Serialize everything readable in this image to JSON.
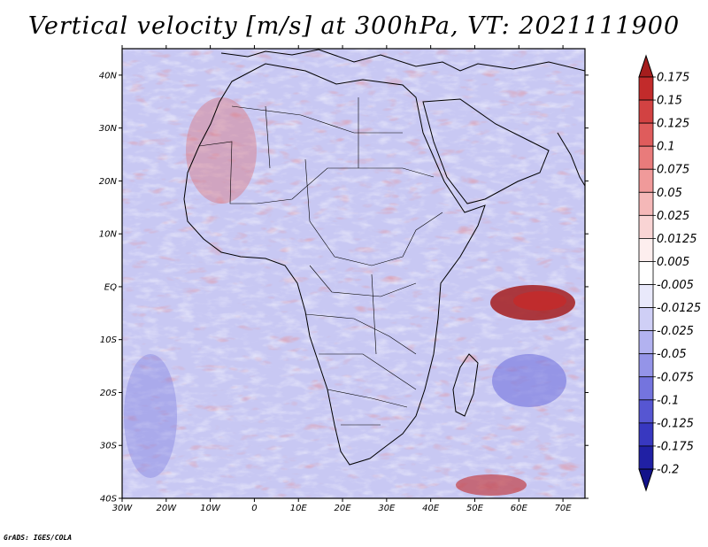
{
  "title": "Vertical velocity [m/s] at 300hPa, VT: 2021111900",
  "map": {
    "lat_labels": [
      "40N",
      "30N",
      "20N",
      "10N",
      "EQ",
      "10S",
      "20S",
      "30S",
      "40S"
    ],
    "lon_labels": [
      "30W",
      "20W",
      "10W",
      "0",
      "10E",
      "20E",
      "30E",
      "40E",
      "50E",
      "60E",
      "70E"
    ],
    "lat_range": [
      -40,
      45
    ],
    "lon_range": [
      -30,
      75
    ]
  },
  "colorbar": {
    "labels": [
      "0.175",
      "0.15",
      "0.125",
      "0.1",
      "0.075",
      "0.05",
      "0.025",
      "0.0125",
      "0.005",
      "-0.005",
      "-0.0125",
      "-0.025",
      "-0.05",
      "-0.075",
      "-0.1",
      "-0.125",
      "-0.175",
      "-0.2"
    ],
    "colors": [
      "#a51d1d",
      "#c22b2b",
      "#d24242",
      "#df5c5c",
      "#e97b7b",
      "#f09a9a",
      "#f5b8b8",
      "#f9d4d4",
      "#fdeeee",
      "#ffffff",
      "#e9e9fb",
      "#cfcff6",
      "#b2b2f0",
      "#9494e8",
      "#7474de",
      "#5656d2",
      "#3838c0",
      "#2020a4",
      "#12128a"
    ]
  },
  "credit": "GrADS: IGES/COLA"
}
